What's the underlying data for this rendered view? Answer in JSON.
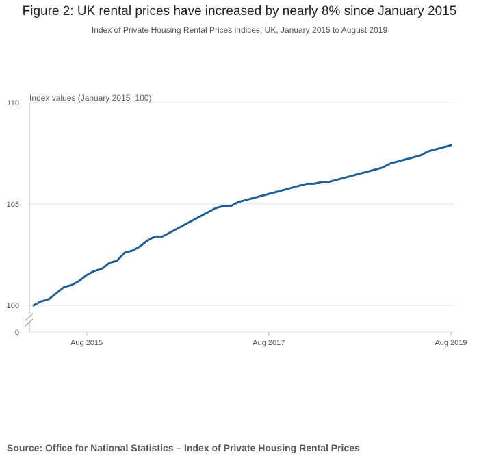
{
  "title": "Figure 2: UK rental prices have increased by nearly 8% since January 2015",
  "subtitle": "Index of Private Housing Rental Prices indices, UK, January 2015 to August 2019",
  "source": "Source: Office for National Statistics – Index of Private Housing Rental Prices",
  "colors": {
    "line": "#206095",
    "grid": "#e6e6e6",
    "axis": "#b3b3b3",
    "text": "#555555"
  },
  "chart_data": {
    "type": "line",
    "title": "Figure 2: UK rental prices have increased by nearly 8% since January 2015",
    "subtitle": "Index of Private Housing Rental Prices indices, UK, January 2015 to August 2019",
    "ylabel": "Index values (January 2015=100)",
    "xlabel": "",
    "ylim": [
      100,
      110
    ],
    "y_axis_break": true,
    "y_ticks": [
      "0",
      "100",
      "105",
      "110"
    ],
    "x_ticks": [
      "Aug 2015",
      "Aug 2017",
      "Aug 2019"
    ],
    "x_tick_index": [
      7,
      31,
      55
    ],
    "grid": true,
    "x": [
      "Jan 2015",
      "Feb 2015",
      "Mar 2015",
      "Apr 2015",
      "May 2015",
      "Jun 2015",
      "Jul 2015",
      "Aug 2015",
      "Sep 2015",
      "Oct 2015",
      "Nov 2015",
      "Dec 2015",
      "Jan 2016",
      "Feb 2016",
      "Mar 2016",
      "Apr 2016",
      "May 2016",
      "Jun 2016",
      "Jul 2016",
      "Aug 2016",
      "Sep 2016",
      "Oct 2016",
      "Nov 2016",
      "Dec 2016",
      "Jan 2017",
      "Feb 2017",
      "Mar 2017",
      "Apr 2017",
      "May 2017",
      "Jun 2017",
      "Jul 2017",
      "Aug 2017",
      "Sep 2017",
      "Oct 2017",
      "Nov 2017",
      "Dec 2017",
      "Jan 2018",
      "Feb 2018",
      "Mar 2018",
      "Apr 2018",
      "May 2018",
      "Jun 2018",
      "Jul 2018",
      "Aug 2018",
      "Sep 2018",
      "Oct 2018",
      "Nov 2018",
      "Dec 2018",
      "Jan 2019",
      "Feb 2019",
      "Mar 2019",
      "Apr 2019",
      "May 2019",
      "Jun 2019",
      "Jul 2019",
      "Aug 2019"
    ],
    "series": [
      {
        "values": [
          100.0,
          100.2,
          100.3,
          100.6,
          100.9,
          101.0,
          101.2,
          101.5,
          101.7,
          101.8,
          102.1,
          102.2,
          102.6,
          102.7,
          102.9,
          103.2,
          103.4,
          103.4,
          103.6,
          103.8,
          104.0,
          104.2,
          104.4,
          104.6,
          104.8,
          104.9,
          104.9,
          105.1,
          105.2,
          105.3,
          105.4,
          105.5,
          105.6,
          105.7,
          105.8,
          105.9,
          106.0,
          106.0,
          106.1,
          106.1,
          106.2,
          106.3,
          106.4,
          106.5,
          106.6,
          106.7,
          106.8,
          107.0,
          107.1,
          107.2,
          107.3,
          107.4,
          107.6,
          107.7,
          107.8,
          107.9
        ]
      }
    ]
  }
}
